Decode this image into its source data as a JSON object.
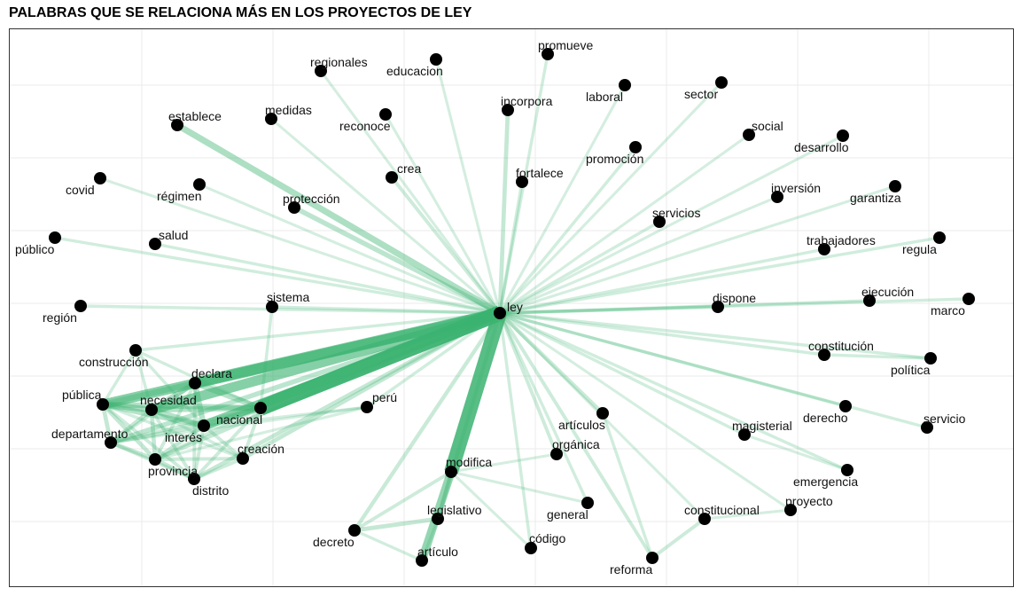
{
  "title": "PALABRAS QUE SE RELACIONA MÁS EN LOS PROYECTOS DE LEY",
  "colors": {
    "edge": "#3cb371",
    "node": "#000000",
    "grid": "#ebebeb",
    "border": "#333333"
  },
  "graph": {
    "nodes": [
      {
        "id": "ley",
        "label": "ley"
      },
      {
        "id": "modifica",
        "label": "modifica"
      },
      {
        "id": "nacional",
        "label": "nacional"
      },
      {
        "id": "declara",
        "label": "declara"
      },
      {
        "id": "necesidad",
        "label": "necesidad"
      },
      {
        "id": "interés",
        "label": "interés"
      },
      {
        "id": "pública",
        "label": "pública"
      },
      {
        "id": "departamento",
        "label": "departamento"
      },
      {
        "id": "provincia",
        "label": "provincia"
      },
      {
        "id": "distrito",
        "label": "distrito"
      },
      {
        "id": "creación",
        "label": "creación"
      },
      {
        "id": "construcción",
        "label": "construcción"
      },
      {
        "id": "región",
        "label": "región"
      },
      {
        "id": "sistema",
        "label": "sistema"
      },
      {
        "id": "perú",
        "label": "perú"
      },
      {
        "id": "artículo",
        "label": "artículo"
      },
      {
        "id": "legislativo",
        "label": "legislativo"
      },
      {
        "id": "decreto",
        "label": "decreto"
      },
      {
        "id": "código",
        "label": "código"
      },
      {
        "id": "general",
        "label": "general"
      },
      {
        "id": "orgánica",
        "label": "orgánica"
      },
      {
        "id": "artículos",
        "label": "artículos"
      },
      {
        "id": "reforma",
        "label": "reforma"
      },
      {
        "id": "constitucional",
        "label": "constitucional"
      },
      {
        "id": "proyecto",
        "label": "proyecto"
      },
      {
        "id": "emergencia",
        "label": "emergencia"
      },
      {
        "id": "magisterial",
        "label": "magisterial"
      },
      {
        "id": "derecho",
        "label": "derecho"
      },
      {
        "id": "servicio",
        "label": "servicio"
      },
      {
        "id": "política",
        "label": "política"
      },
      {
        "id": "constitución",
        "label": "constitución"
      },
      {
        "id": "dispone",
        "label": "dispone"
      },
      {
        "id": "ejecución",
        "label": "ejecución"
      },
      {
        "id": "marco",
        "label": "marco"
      },
      {
        "id": "regula",
        "label": "regula"
      },
      {
        "id": "trabajadores",
        "label": "trabajadores"
      },
      {
        "id": "servicios",
        "label": "servicios"
      },
      {
        "id": "inversión",
        "label": "inversión"
      },
      {
        "id": "garantiza",
        "label": "garantiza"
      },
      {
        "id": "desarrollo",
        "label": "desarrollo"
      },
      {
        "id": "social",
        "label": "social"
      },
      {
        "id": "sector",
        "label": "sector"
      },
      {
        "id": "promoción",
        "label": "promoción"
      },
      {
        "id": "laboral",
        "label": "laboral"
      },
      {
        "id": "fortalece",
        "label": "fortalece"
      },
      {
        "id": "incorpora",
        "label": "incorpora"
      },
      {
        "id": "promueve",
        "label": "promueve"
      },
      {
        "id": "educacion",
        "label": "educacion"
      },
      {
        "id": "regionales",
        "label": "regionales"
      },
      {
        "id": "reconoce",
        "label": "reconoce"
      },
      {
        "id": "crea",
        "label": "crea"
      },
      {
        "id": "medidas",
        "label": "medidas"
      },
      {
        "id": "establece",
        "label": "establece"
      },
      {
        "id": "protección",
        "label": "protección"
      },
      {
        "id": "régimen",
        "label": "régimen"
      },
      {
        "id": "covid",
        "label": "covid"
      },
      {
        "id": "salud",
        "label": "salud"
      },
      {
        "id": "público",
        "label": "público"
      }
    ],
    "edges": [
      {
        "source": "ley",
        "target": "nacional",
        "weight": 10
      },
      {
        "source": "ley",
        "target": "modifica",
        "weight": 9
      },
      {
        "source": "ley",
        "target": "declara",
        "weight": 7
      },
      {
        "source": "ley",
        "target": "necesidad",
        "weight": 6
      },
      {
        "source": "ley",
        "target": "interés",
        "weight": 6
      },
      {
        "source": "ley",
        "target": "pública",
        "weight": 6
      },
      {
        "source": "modifica",
        "target": "artículo",
        "weight": 5
      },
      {
        "source": "ley",
        "target": "establece",
        "weight": 3.5
      },
      {
        "source": "ley",
        "target": "protección",
        "weight": 2.5
      },
      {
        "source": "ley",
        "target": "departamento",
        "weight": 2.5
      },
      {
        "source": "ley",
        "target": "provincia",
        "weight": 2
      },
      {
        "source": "ley",
        "target": "distrito",
        "weight": 2
      },
      {
        "source": "ley",
        "target": "creación",
        "weight": 2
      },
      {
        "source": "ley",
        "target": "incorpora",
        "weight": 2
      },
      {
        "source": "ley",
        "target": "decreto",
        "weight": 1.8
      },
      {
        "source": "ley",
        "target": "legislativo",
        "weight": 1.8
      },
      {
        "source": "ley",
        "target": "artículos",
        "weight": 1.8
      },
      {
        "source": "ley",
        "target": "orgánica",
        "weight": 1.5
      },
      {
        "source": "ley",
        "target": "reforma",
        "weight": 1.5
      },
      {
        "source": "ley",
        "target": "crea",
        "weight": 1.5
      },
      {
        "source": "ley",
        "target": "fortalece",
        "weight": 1.3
      },
      {
        "source": "ley",
        "target": "promueve",
        "weight": 1.2
      },
      {
        "source": "ley",
        "target": "promoción",
        "weight": 1.2
      },
      {
        "source": "ley",
        "target": "público",
        "weight": 1.2
      },
      {
        "source": "ley",
        "target": "salud",
        "weight": 1.2
      },
      {
        "source": "ley",
        "target": "sistema",
        "weight": 1.2
      },
      {
        "source": "ley",
        "target": "región",
        "weight": 1.2
      },
      {
        "source": "ley",
        "target": "construcción",
        "weight": 1.2
      },
      {
        "source": "ley",
        "target": "perú",
        "weight": 1.2
      },
      {
        "source": "ley",
        "target": "código",
        "weight": 1.2
      },
      {
        "source": "ley",
        "target": "general",
        "weight": 1.2
      },
      {
        "source": "ley",
        "target": "dispone",
        "weight": 1.4
      },
      {
        "source": "ley",
        "target": "constitución",
        "weight": 1.2
      },
      {
        "source": "ley",
        "target": "ejecución",
        "weight": 1.2
      },
      {
        "source": "ley",
        "target": "marco",
        "weight": 1.2
      },
      {
        "source": "ley",
        "target": "política",
        "weight": 1.2
      },
      {
        "source": "ley",
        "target": "derecho",
        "weight": 1.2
      },
      {
        "source": "ley",
        "target": "servicio",
        "weight": 1.2
      },
      {
        "source": "ley",
        "target": "magisterial",
        "weight": 1.2
      },
      {
        "source": "ley",
        "target": "emergencia",
        "weight": 1.2
      },
      {
        "source": "ley",
        "target": "proyecto",
        "weight": 1
      },
      {
        "source": "ley",
        "target": "constitucional",
        "weight": 1
      },
      {
        "source": "ley",
        "target": "trabajadores",
        "weight": 1.2
      },
      {
        "source": "ley",
        "target": "regula",
        "weight": 1.2
      },
      {
        "source": "ley",
        "target": "servicios",
        "weight": 1.2
      },
      {
        "source": "ley",
        "target": "inversión",
        "weight": 1
      },
      {
        "source": "ley",
        "target": "garantiza",
        "weight": 1
      },
      {
        "source": "ley",
        "target": "desarrollo",
        "weight": 1
      },
      {
        "source": "ley",
        "target": "social",
        "weight": 1
      },
      {
        "source": "ley",
        "target": "sector",
        "weight": 1
      },
      {
        "source": "ley",
        "target": "laboral",
        "weight": 1
      },
      {
        "source": "ley",
        "target": "educacion",
        "weight": 1
      },
      {
        "source": "ley",
        "target": "regionales",
        "weight": 1
      },
      {
        "source": "ley",
        "target": "reconoce",
        "weight": 1
      },
      {
        "source": "ley",
        "target": "medidas",
        "weight": 1
      },
      {
        "source": "ley",
        "target": "régimen",
        "weight": 1
      },
      {
        "source": "ley",
        "target": "covid",
        "weight": 1
      },
      {
        "source": "nacional",
        "target": "pública",
        "weight": 3
      },
      {
        "source": "nacional",
        "target": "necesidad",
        "weight": 3
      },
      {
        "source": "nacional",
        "target": "interés",
        "weight": 3
      },
      {
        "source": "nacional",
        "target": "declara",
        "weight": 3
      },
      {
        "source": "declara",
        "target": "pública",
        "weight": 3
      },
      {
        "source": "declara",
        "target": "necesidad",
        "weight": 3
      },
      {
        "source": "declara",
        "target": "interés",
        "weight": 3
      },
      {
        "source": "necesidad",
        "target": "pública",
        "weight": 3.5
      },
      {
        "source": "necesidad",
        "target": "interés",
        "weight": 3
      },
      {
        "source": "interés",
        "target": "pública",
        "weight": 3
      },
      {
        "source": "pública",
        "target": "departamento",
        "weight": 2
      },
      {
        "source": "pública",
        "target": "provincia",
        "weight": 2
      },
      {
        "source": "necesidad",
        "target": "departamento",
        "weight": 2
      },
      {
        "source": "necesidad",
        "target": "provincia",
        "weight": 2
      },
      {
        "source": "interés",
        "target": "departamento",
        "weight": 2
      },
      {
        "source": "interés",
        "target": "provincia",
        "weight": 2
      },
      {
        "source": "declara",
        "target": "departamento",
        "weight": 1.5
      },
      {
        "source": "declara",
        "target": "provincia",
        "weight": 1.5
      },
      {
        "source": "nacional",
        "target": "departamento",
        "weight": 1.5
      },
      {
        "source": "nacional",
        "target": "provincia",
        "weight": 1.5
      },
      {
        "source": "provincia",
        "target": "departamento",
        "weight": 2
      },
      {
        "source": "distrito",
        "target": "provincia",
        "weight": 2
      },
      {
        "source": "distrito",
        "target": "departamento",
        "weight": 1.5
      },
      {
        "source": "distrito",
        "target": "interés",
        "weight": 1.5
      },
      {
        "source": "distrito",
        "target": "necesidad",
        "weight": 1.5
      },
      {
        "source": "distrito",
        "target": "pública",
        "weight": 1.5
      },
      {
        "source": "distrito",
        "target": "nacional",
        "weight": 1.5
      },
      {
        "source": "distrito",
        "target": "declara",
        "weight": 1.5
      },
      {
        "source": "creación",
        "target": "nacional",
        "weight": 1.5
      },
      {
        "source": "creación",
        "target": "interés",
        "weight": 1.5
      },
      {
        "source": "creación",
        "target": "distrito",
        "weight": 1.5
      },
      {
        "source": "creación",
        "target": "provincia",
        "weight": 1.5
      },
      {
        "source": "creación",
        "target": "necesidad",
        "weight": 1.2
      },
      {
        "source": "creación",
        "target": "pública",
        "weight": 1.2
      },
      {
        "source": "construcción",
        "target": "pública",
        "weight": 1.2
      },
      {
        "source": "construcción",
        "target": "necesidad",
        "weight": 1.2
      },
      {
        "source": "construcción",
        "target": "interés",
        "weight": 1.2
      },
      {
        "source": "construcción",
        "target": "nacional",
        "weight": 1.2
      },
      {
        "source": "sistema",
        "target": "nacional",
        "weight": 1.2
      },
      {
        "source": "perú",
        "target": "provincia",
        "weight": 1
      },
      {
        "source": "perú",
        "target": "departamento",
        "weight": 1
      },
      {
        "source": "perú",
        "target": "interés",
        "weight": 1
      },
      {
        "source": "modifica",
        "target": "decreto",
        "weight": 1.5
      },
      {
        "source": "modifica",
        "target": "legislativo",
        "weight": 1.5
      },
      {
        "source": "modifica",
        "target": "código",
        "weight": 1
      },
      {
        "source": "modifica",
        "target": "orgánica",
        "weight": 1
      },
      {
        "source": "modifica",
        "target": "general",
        "weight": 1
      },
      {
        "source": "decreto",
        "target": "legislativo",
        "weight": 2
      },
      {
        "source": "decreto",
        "target": "artículo",
        "weight": 1.2
      },
      {
        "source": "legislativo",
        "target": "artículo",
        "weight": 1.2
      },
      {
        "source": "reforma",
        "target": "constitucional",
        "weight": 1.5
      },
      {
        "source": "artículos",
        "target": "reforma",
        "weight": 1.2
      },
      {
        "source": "constitución",
        "target": "política",
        "weight": 1.2
      },
      {
        "source": "emergencia",
        "target": "magisterial",
        "weight": 1
      },
      {
        "source": "proyecto",
        "target": "constitucional",
        "weight": 1
      }
    ]
  }
}
